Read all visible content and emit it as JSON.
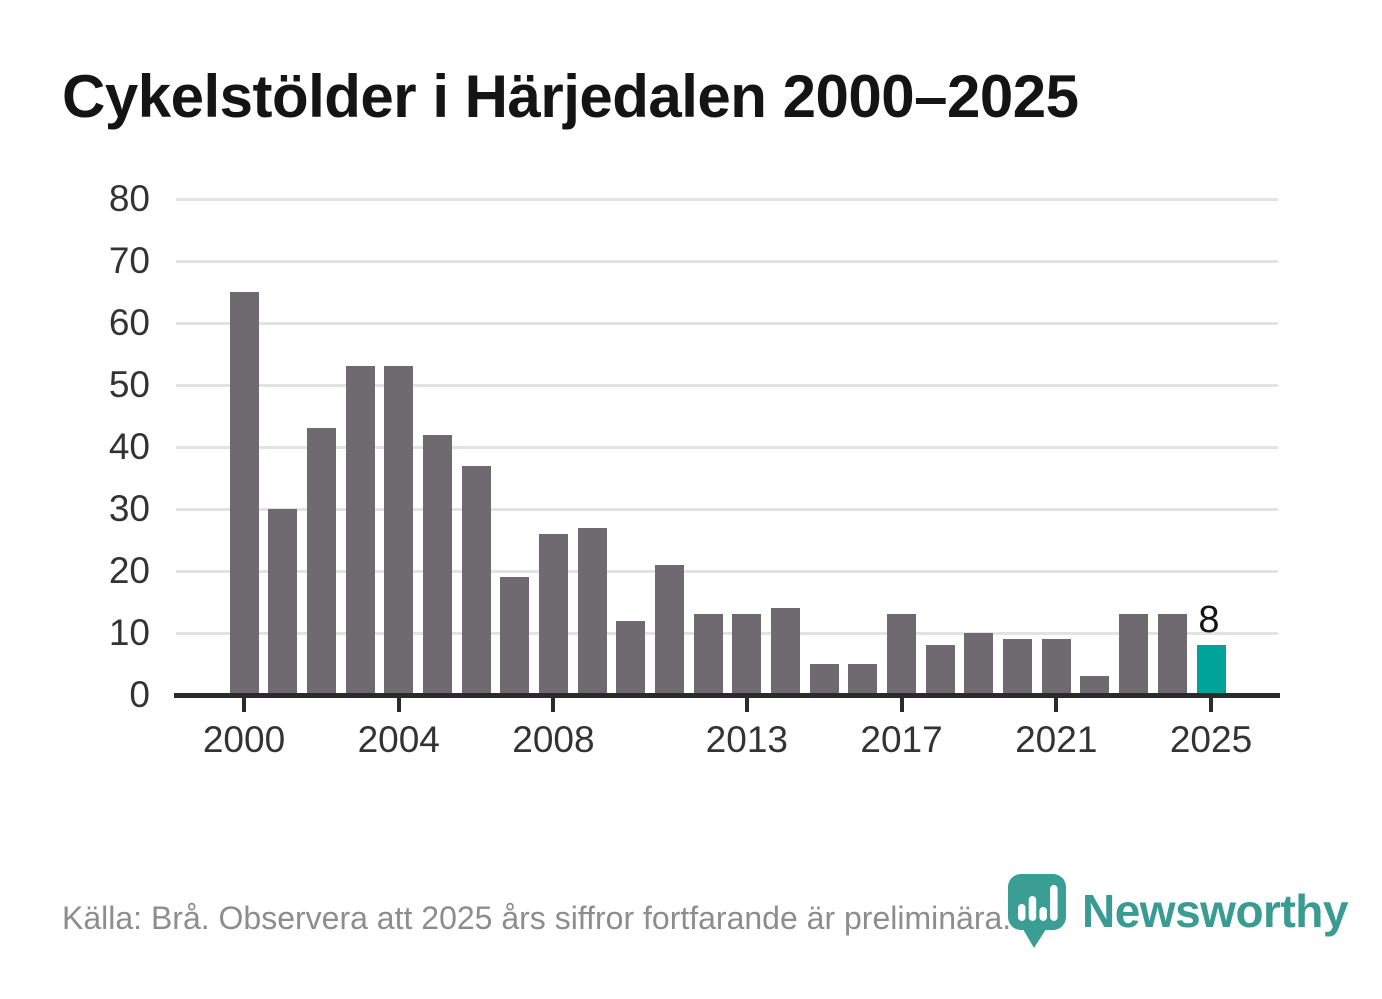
{
  "chart_data": {
    "type": "bar",
    "title": "Cykelstölder i Härjedalen 2000–2025",
    "x": [
      2000,
      2001,
      2002,
      2003,
      2004,
      2005,
      2006,
      2007,
      2008,
      2009,
      2010,
      2011,
      2012,
      2013,
      2014,
      2015,
      2016,
      2017,
      2018,
      2019,
      2020,
      2021,
      2022,
      2023,
      2024,
      2025
    ],
    "values": [
      65,
      30,
      43,
      53,
      53,
      42,
      37,
      19,
      26,
      27,
      12,
      21,
      13,
      13,
      14,
      5,
      5,
      13,
      8,
      10,
      9,
      9,
      3,
      13,
      13,
      8
    ],
    "ylim": [
      0,
      80
    ],
    "y_ticks": [
      0,
      10,
      20,
      30,
      40,
      50,
      60,
      70,
      80
    ],
    "x_tick_years": [
      2000,
      2004,
      2008,
      2013,
      2017,
      2021,
      2025
    ],
    "grid": "horizontal",
    "legend": "none",
    "bar_color": "#6e6a70",
    "highlight_year": 2025,
    "highlight_color": "#00a39a",
    "highlight_value_label": "8"
  },
  "footer": {
    "source_note": "Källa: Brå. Observera att 2025 års siffror fortfarande är preliminära."
  },
  "branding": {
    "wordmark": "Newsworthy",
    "logo_icon": "newsworthy-bar-chart-pin-icon",
    "brand_color": "#399b91"
  }
}
